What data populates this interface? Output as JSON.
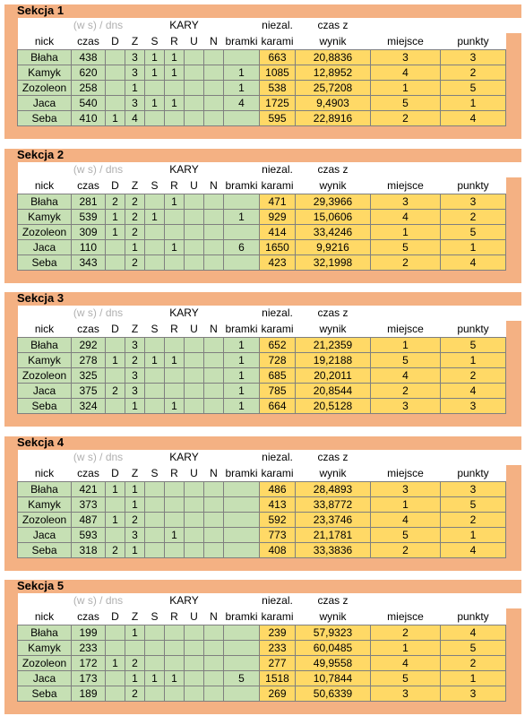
{
  "headers": {
    "nick": "nick",
    "sub": "(w s) / dns",
    "czas": "czas",
    "kary": "KARY",
    "d": "D",
    "z": "Z",
    "s": "S",
    "r": "R",
    "u": "U",
    "n": "N",
    "niezal_1": "niezal.",
    "niezal_2": "bramki",
    "czas_z_1": "czas z",
    "czas_z_2": "karami",
    "wynik": "wynik",
    "miejsce": "miejsce",
    "punkty": "punkty"
  },
  "sections": [
    {
      "title": "Sekcja 1",
      "rows": [
        [
          "Błaha",
          "438",
          "",
          "3",
          "1",
          "1",
          "",
          "",
          "",
          "663",
          "20,8836",
          "3",
          "3"
        ],
        [
          "Kamyk",
          "620",
          "",
          "3",
          "1",
          "1",
          "",
          "",
          "1",
          "1085",
          "12,8952",
          "4",
          "2"
        ],
        [
          "Zozoleon",
          "258",
          "",
          "1",
          "",
          "",
          "",
          "",
          "1",
          "538",
          "25,7208",
          "1",
          "5"
        ],
        [
          "Jaca",
          "540",
          "",
          "3",
          "1",
          "1",
          "",
          "",
          "4",
          "1725",
          "9,4903",
          "5",
          "1"
        ],
        [
          "Seba",
          "410",
          "1",
          "4",
          "",
          "",
          "",
          "",
          "",
          "595",
          "22,8916",
          "2",
          "4"
        ]
      ]
    },
    {
      "title": "Sekcja 2",
      "rows": [
        [
          "Błaha",
          "281",
          "2",
          "2",
          "",
          "1",
          "",
          "",
          "",
          "471",
          "29,3966",
          "3",
          "3"
        ],
        [
          "Kamyk",
          "539",
          "1",
          "2",
          "1",
          "",
          "",
          "",
          "1",
          "929",
          "15,0606",
          "4",
          "2"
        ],
        [
          "Zozoleon",
          "309",
          "1",
          "2",
          "",
          "",
          "",
          "",
          "",
          "414",
          "33,4246",
          "1",
          "5"
        ],
        [
          "Jaca",
          "110",
          "",
          "1",
          "",
          "1",
          "",
          "",
          "6",
          "1650",
          "9,9216",
          "5",
          "1"
        ],
        [
          "Seba",
          "343",
          "",
          "2",
          "",
          "",
          "",
          "",
          "",
          "423",
          "32,1998",
          "2",
          "4"
        ]
      ]
    },
    {
      "title": "Sekcja 3",
      "rows": [
        [
          "Błaha",
          "292",
          "",
          "3",
          "",
          "",
          "",
          "",
          "1",
          "652",
          "21,2359",
          "1",
          "5"
        ],
        [
          "Kamyk",
          "278",
          "1",
          "2",
          "1",
          "1",
          "",
          "",
          "1",
          "728",
          "19,2188",
          "5",
          "1"
        ],
        [
          "Zozoleon",
          "325",
          "",
          "3",
          "",
          "",
          "",
          "",
          "1",
          "685",
          "20,2011",
          "4",
          "2"
        ],
        [
          "Jaca",
          "375",
          "2",
          "3",
          "",
          "",
          "",
          "",
          "1",
          "785",
          "20,8544",
          "2",
          "4"
        ],
        [
          "Seba",
          "324",
          "",
          "1",
          "",
          "1",
          "",
          "",
          "1",
          "664",
          "20,5128",
          "3",
          "3"
        ]
      ]
    },
    {
      "title": "Sekcja 4",
      "rows": [
        [
          "Błaha",
          "421",
          "1",
          "1",
          "",
          "",
          "",
          "",
          "",
          "486",
          "28,4893",
          "3",
          "3"
        ],
        [
          "Kamyk",
          "373",
          "",
          "1",
          "",
          "",
          "",
          "",
          "",
          "413",
          "33,8772",
          "1",
          "5"
        ],
        [
          "Zozoleon",
          "487",
          "1",
          "2",
          "",
          "",
          "",
          "",
          "",
          "592",
          "23,3746",
          "4",
          "2"
        ],
        [
          "Jaca",
          "593",
          "",
          "3",
          "",
          "1",
          "",
          "",
          "",
          "773",
          "21,1781",
          "5",
          "1"
        ],
        [
          "Seba",
          "318",
          "2",
          "1",
          "",
          "",
          "",
          "",
          "",
          "408",
          "33,3836",
          "2",
          "4"
        ]
      ]
    },
    {
      "title": "Sekcja 5",
      "rows": [
        [
          "Błaha",
          "199",
          "",
          "1",
          "",
          "",
          "",
          "",
          "",
          "239",
          "57,9323",
          "2",
          "4"
        ],
        [
          "Kamyk",
          "233",
          "",
          "",
          "",
          "",
          "",
          "",
          "",
          "233",
          "60,0485",
          "1",
          "5"
        ],
        [
          "Zozoleon",
          "172",
          "1",
          "2",
          "",
          "",
          "",
          "",
          "",
          "277",
          "49,9558",
          "4",
          "2"
        ],
        [
          "Jaca",
          "173",
          "",
          "1",
          "1",
          "1",
          "",
          "",
          "5",
          "1518",
          "10,7844",
          "5",
          "1"
        ],
        [
          "Seba",
          "189",
          "",
          "2",
          "",
          "",
          "",
          "",
          "",
          "269",
          "50,6339",
          "3",
          "3"
        ]
      ]
    }
  ]
}
